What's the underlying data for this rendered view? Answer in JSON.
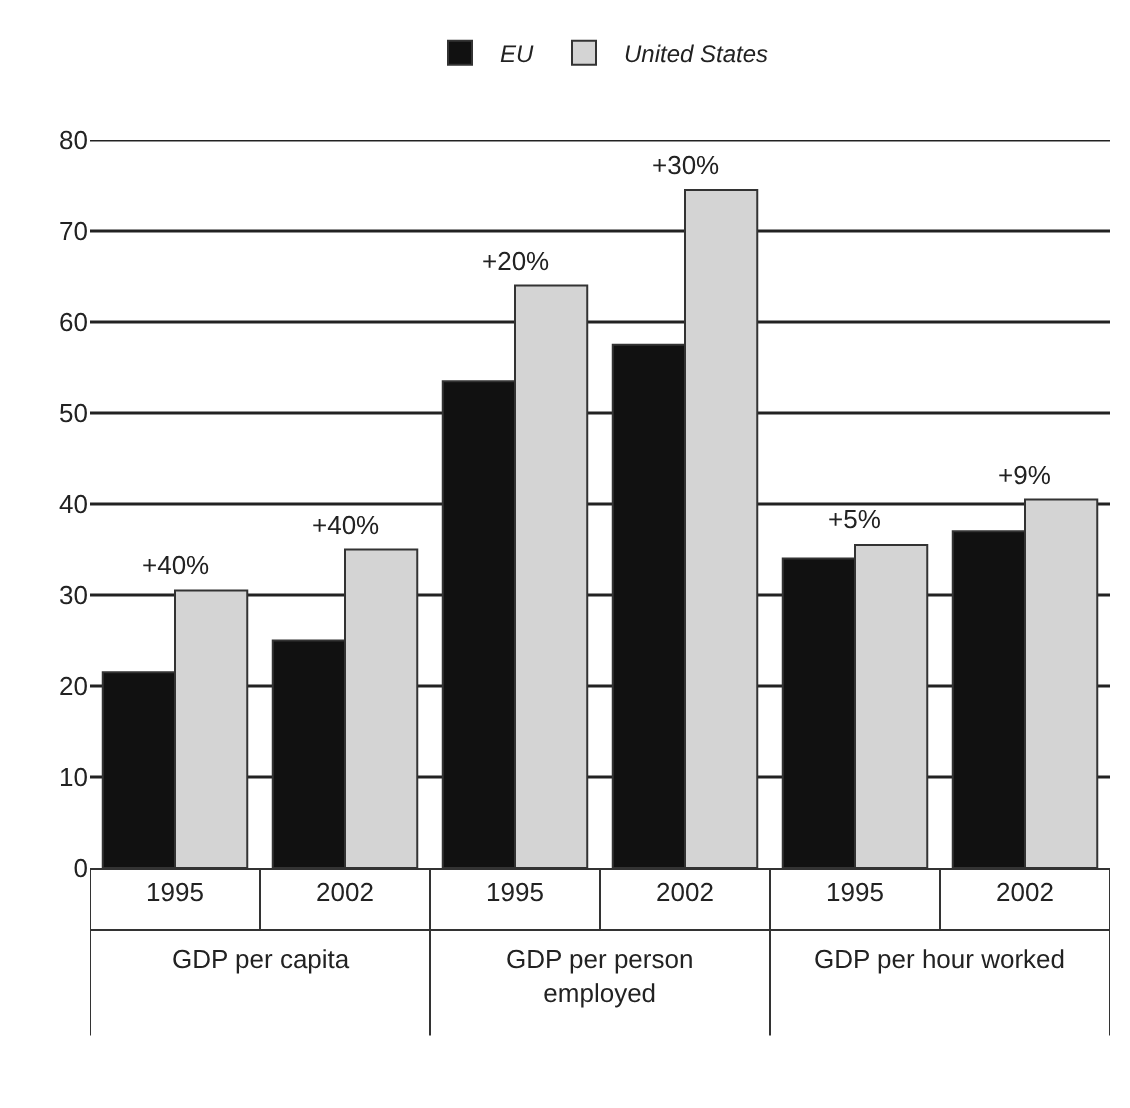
{
  "chart_data": {
    "type": "bar",
    "categories": [
      "1995",
      "2002",
      "1995",
      "2002",
      "1995",
      "2002"
    ],
    "series": [
      {
        "name": "EU",
        "color": "#111111",
        "values": [
          21.5,
          25,
          53.5,
          57.5,
          34,
          37
        ]
      },
      {
        "name": "United States",
        "color": "#d4d4d4",
        "values": [
          30.5,
          35,
          64,
          74.5,
          35.5,
          40.5
        ]
      }
    ],
    "annotations": [
      "GDP per capita",
      "GDP per person employed",
      "GDP per hour worked",
      {
        "text": "+40%",
        "y": 30.5
      },
      {
        "text": "+40%",
        "y": 35
      },
      {
        "text": "+20%",
        "y": 64
      },
      {
        "text": "+30%",
        "y": 74.5
      },
      {
        "text": "+5%",
        "y": 35.5
      },
      {
        "text": "+9%",
        "y": 40.5
      }
    ],
    "ylim": [
      0,
      80
    ],
    "yticks": [
      0,
      10,
      20,
      30,
      40,
      50,
      60,
      70,
      80
    ],
    "grid": "y",
    "legend": "top"
  }
}
